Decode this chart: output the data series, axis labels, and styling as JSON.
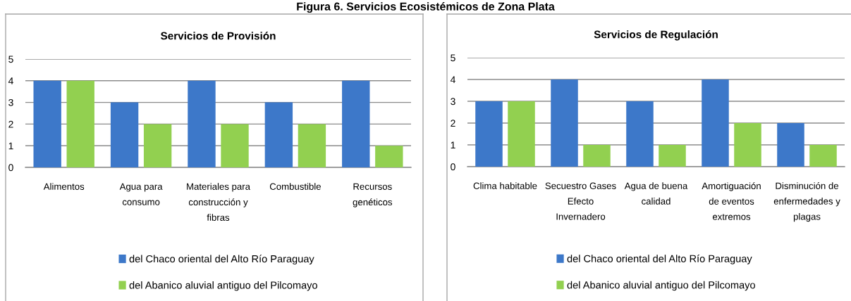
{
  "chart_data": [
    {
      "type": "bar",
      "title": "Servicios de Provisión",
      "categories": [
        "Alimentos",
        "Agua para\nconsumo",
        "Materiales para\nconstrucción y\nfibras",
        "Combustible",
        "Recursos\ngenéticos"
      ],
      "series": [
        {
          "name": "del Chaco oriental del Alto Río Paraguay",
          "color": "#3d78c9",
          "values": [
            4,
            3,
            4,
            3,
            4
          ]
        },
        {
          "name": "del Abanico aluvial antiguo del Pilcomayo",
          "color": "#92d050",
          "values": [
            4,
            2,
            2,
            2,
            1
          ]
        }
      ],
      "ylim": [
        0,
        5
      ],
      "yticks": [
        0,
        1,
        2,
        3,
        4,
        5
      ],
      "grid": "y",
      "legend": "bottom",
      "annotations": [
        "Figura 6. Servicios Ecosistémicos de Zona Plata"
      ]
    },
    {
      "type": "bar",
      "title": "Servicios de Regulación",
      "categories": [
        "Clima habitable",
        "Secuestro Gases\nEfecto\nInvernadero",
        "Agua de buena\ncalidad",
        "Amortiguación\nde eventos\nextremos",
        "Disminución de\nenfermedades y\nplagas"
      ],
      "series": [
        {
          "name": "del Chaco oriental del Alto Río Paraguay",
          "color": "#3d78c9",
          "values": [
            3,
            4,
            3,
            4,
            2
          ]
        },
        {
          "name": "del Abanico aluvial antiguo del Pilcomayo",
          "color": "#92d050",
          "values": [
            3,
            1,
            1,
            2,
            1
          ]
        }
      ],
      "ylim": [
        0,
        5
      ],
      "yticks": [
        0,
        1,
        2,
        3,
        4,
        5
      ],
      "grid": "y",
      "legend": "bottom"
    }
  ]
}
